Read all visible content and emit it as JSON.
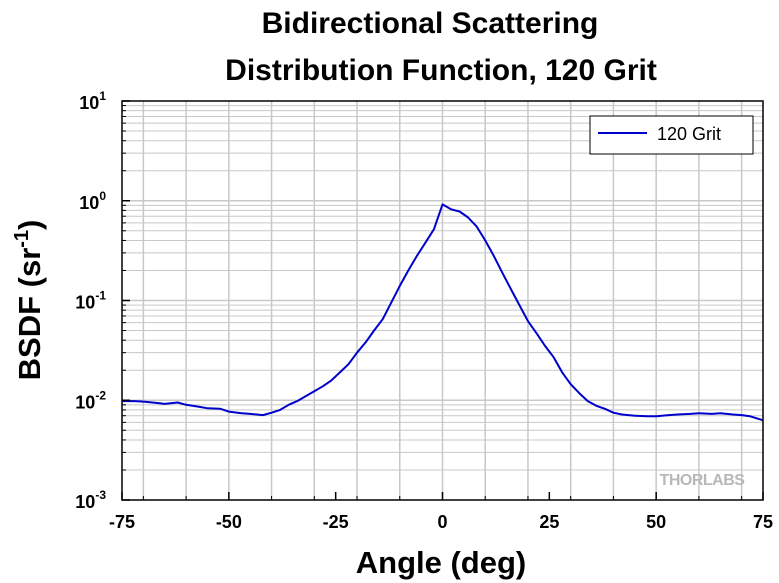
{
  "chart_data": {
    "type": "line",
    "title_lines": [
      "Bidirectional Scattering",
      "Distribution Function, 120 Grit"
    ],
    "xlabel": "Angle (deg)",
    "ylabel_base": "BSDF (sr",
    "ylabel_sup": "-1",
    "ylabel_close": ")",
    "xlim": [
      -75,
      75
    ],
    "ylim": [
      0.001,
      10
    ],
    "yscale": "log",
    "grid": true,
    "x_ticks": [
      -75,
      -50,
      -25,
      0,
      25,
      50,
      75
    ],
    "x_tick_labels": [
      "-75",
      "-50",
      "-25",
      "0",
      "25",
      "50",
      "75"
    ],
    "y_ticks": [
      {
        "value": 0.001,
        "base": "10",
        "exp": "-3"
      },
      {
        "value": 0.01,
        "base": "10",
        "exp": "-2"
      },
      {
        "value": 0.1,
        "base": "10",
        "exp": "-1"
      },
      {
        "value": 1,
        "base": "10",
        "exp": "0"
      },
      {
        "value": 10,
        "base": "10",
        "exp": "1"
      }
    ],
    "legend_position": "top-right",
    "series": [
      {
        "name": "120 Grit",
        "color": "#0000cc",
        "x": [
          -75,
          -72,
          -70,
          -67,
          -65,
          -62,
          -60,
          -57,
          -55,
          -52,
          -50,
          -47,
          -45,
          -42,
          -40,
          -38,
          -36,
          -34,
          -32,
          -30,
          -28,
          -26,
          -24,
          -22,
          -20,
          -18,
          -16,
          -14,
          -12,
          -10,
          -8,
          -6,
          -4,
          -2,
          0,
          2,
          4,
          6,
          8,
          10,
          12,
          14,
          16,
          18,
          20,
          22,
          24,
          26,
          28,
          30,
          32,
          34,
          36,
          38,
          40,
          42,
          45,
          48,
          50,
          53,
          55,
          58,
          60,
          63,
          65,
          68,
          70,
          72,
          75
        ],
        "y": [
          0.0098,
          0.0098,
          0.0097,
          0.0094,
          0.0092,
          0.0095,
          0.009,
          0.0086,
          0.0083,
          0.0082,
          0.0077,
          0.0074,
          0.0073,
          0.0071,
          0.0075,
          0.008,
          0.009,
          0.0098,
          0.011,
          0.0123,
          0.0138,
          0.0158,
          0.019,
          0.023,
          0.03,
          0.038,
          0.05,
          0.065,
          0.095,
          0.14,
          0.2,
          0.28,
          0.38,
          0.52,
          0.92,
          0.82,
          0.78,
          0.68,
          0.55,
          0.4,
          0.28,
          0.19,
          0.13,
          0.09,
          0.062,
          0.047,
          0.035,
          0.027,
          0.019,
          0.0145,
          0.0118,
          0.0098,
          0.0088,
          0.0082,
          0.0075,
          0.0072,
          0.007,
          0.0069,
          0.0069,
          0.0071,
          0.0072,
          0.0073,
          0.0074,
          0.0073,
          0.0074,
          0.0072,
          0.0071,
          0.0069,
          0.0063
        ]
      }
    ]
  },
  "watermark": "THORLABS"
}
